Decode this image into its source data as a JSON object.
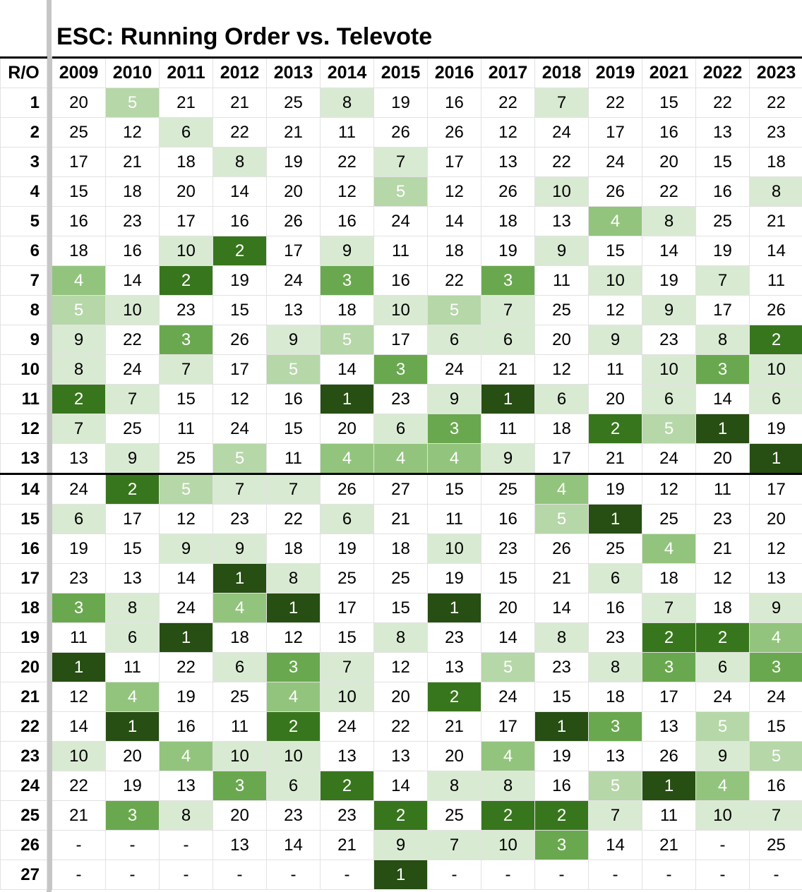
{
  "title": "ESC: Running Order vs. Televote",
  "header": {
    "ro_label": "R/O",
    "years": [
      "2009",
      "2010",
      "2011",
      "2012",
      "2013",
      "2014",
      "2015",
      "2016",
      "2017",
      "2018",
      "2019",
      "2021",
      "2022",
      "2023"
    ]
  },
  "colors": {
    "rank_1": "#274e13",
    "rank_2": "#38761d",
    "rank_3": "#6aa84f",
    "rank_4": "#93c47d",
    "rank_5": "#b6d7a8",
    "rank_6_to_10": "#d9ead3",
    "freeze_bar": "#c6c6c6"
  },
  "rows": [
    {
      "ro": "1",
      "values": [
        "20",
        "5",
        "21",
        "21",
        "25",
        "8",
        "19",
        "16",
        "22",
        "7",
        "22",
        "15",
        "22",
        "22"
      ]
    },
    {
      "ro": "2",
      "values": [
        "25",
        "12",
        "6",
        "22",
        "21",
        "11",
        "26",
        "26",
        "12",
        "24",
        "17",
        "16",
        "13",
        "23"
      ]
    },
    {
      "ro": "3",
      "values": [
        "17",
        "21",
        "18",
        "8",
        "19",
        "22",
        "7",
        "17",
        "13",
        "22",
        "24",
        "20",
        "15",
        "18"
      ]
    },
    {
      "ro": "4",
      "values": [
        "15",
        "18",
        "20",
        "14",
        "20",
        "12",
        "5",
        "12",
        "26",
        "10",
        "26",
        "22",
        "16",
        "8"
      ]
    },
    {
      "ro": "5",
      "values": [
        "16",
        "23",
        "17",
        "16",
        "26",
        "16",
        "24",
        "14",
        "18",
        "13",
        "4",
        "8",
        "25",
        "21"
      ]
    },
    {
      "ro": "6",
      "values": [
        "18",
        "16",
        "10",
        "2",
        "17",
        "9",
        "11",
        "18",
        "19",
        "9",
        "15",
        "14",
        "19",
        "14"
      ]
    },
    {
      "ro": "7",
      "values": [
        "4",
        "14",
        "2",
        "19",
        "24",
        "3",
        "16",
        "22",
        "3",
        "11",
        "10",
        "19",
        "7",
        "11"
      ]
    },
    {
      "ro": "8",
      "values": [
        "5",
        "10",
        "23",
        "15",
        "13",
        "18",
        "10",
        "5",
        "7",
        "25",
        "12",
        "9",
        "17",
        "26"
      ]
    },
    {
      "ro": "9",
      "values": [
        "9",
        "22",
        "3",
        "26",
        "9",
        "5",
        "17",
        "6",
        "6",
        "20",
        "9",
        "23",
        "8",
        "2"
      ]
    },
    {
      "ro": "10",
      "values": [
        "8",
        "24",
        "7",
        "17",
        "5",
        "14",
        "3",
        "24",
        "21",
        "12",
        "11",
        "10",
        "3",
        "10"
      ]
    },
    {
      "ro": "11",
      "values": [
        "2",
        "7",
        "15",
        "12",
        "16",
        "1",
        "23",
        "9",
        "1",
        "6",
        "20",
        "6",
        "14",
        "6"
      ]
    },
    {
      "ro": "12",
      "values": [
        "7",
        "25",
        "11",
        "24",
        "15",
        "20",
        "6",
        "3",
        "11",
        "18",
        "2",
        "5",
        "1",
        "19"
      ]
    },
    {
      "ro": "13",
      "values": [
        "13",
        "9",
        "25",
        "5",
        "11",
        "4",
        "4",
        "4",
        "9",
        "17",
        "21",
        "24",
        "20",
        "1"
      ]
    },
    {
      "ro": "14",
      "values": [
        "24",
        "2",
        "5",
        "7",
        "7",
        "26",
        "27",
        "15",
        "25",
        "4",
        "19",
        "12",
        "11",
        "17"
      ]
    },
    {
      "ro": "15",
      "values": [
        "6",
        "17",
        "12",
        "23",
        "22",
        "6",
        "21",
        "11",
        "16",
        "5",
        "1",
        "25",
        "23",
        "20"
      ]
    },
    {
      "ro": "16",
      "values": [
        "19",
        "15",
        "9",
        "9",
        "18",
        "19",
        "18",
        "10",
        "23",
        "26",
        "25",
        "4",
        "21",
        "12"
      ]
    },
    {
      "ro": "17",
      "values": [
        "23",
        "13",
        "14",
        "1",
        "8",
        "25",
        "25",
        "19",
        "15",
        "21",
        "6",
        "18",
        "12",
        "13"
      ]
    },
    {
      "ro": "18",
      "values": [
        "3",
        "8",
        "24",
        "4",
        "1",
        "17",
        "15",
        "1",
        "20",
        "14",
        "16",
        "7",
        "18",
        "9"
      ]
    },
    {
      "ro": "19",
      "values": [
        "11",
        "6",
        "1",
        "18",
        "12",
        "15",
        "8",
        "23",
        "14",
        "8",
        "23",
        "2",
        "2",
        "4"
      ]
    },
    {
      "ro": "20",
      "values": [
        "1",
        "11",
        "22",
        "6",
        "3",
        "7",
        "12",
        "13",
        "5",
        "23",
        "8",
        "3",
        "6",
        "3"
      ]
    },
    {
      "ro": "21",
      "values": [
        "12",
        "4",
        "19",
        "25",
        "4",
        "10",
        "20",
        "2",
        "24",
        "15",
        "18",
        "17",
        "24",
        "24"
      ]
    },
    {
      "ro": "22",
      "values": [
        "14",
        "1",
        "16",
        "11",
        "2",
        "24",
        "22",
        "21",
        "17",
        "1",
        "3",
        "13",
        "5",
        "15"
      ]
    },
    {
      "ro": "23",
      "values": [
        "10",
        "20",
        "4",
        "10",
        "10",
        "13",
        "13",
        "20",
        "4",
        "19",
        "13",
        "26",
        "9",
        "5"
      ]
    },
    {
      "ro": "24",
      "values": [
        "22",
        "19",
        "13",
        "3",
        "6",
        "2",
        "14",
        "8",
        "8",
        "16",
        "5",
        "1",
        "4",
        "16"
      ]
    },
    {
      "ro": "25",
      "values": [
        "21",
        "3",
        "8",
        "20",
        "23",
        "23",
        "2",
        "25",
        "2",
        "2",
        "7",
        "11",
        "10",
        "7"
      ]
    },
    {
      "ro": "26",
      "values": [
        "-",
        "-",
        "-",
        "13",
        "14",
        "21",
        "9",
        "7",
        "10",
        "3",
        "14",
        "21",
        "-",
        "25"
      ]
    },
    {
      "ro": "27",
      "values": [
        "-",
        "-",
        "-",
        "-",
        "-",
        "-",
        "1",
        "-",
        "-",
        "-",
        "-",
        "-",
        "-",
        "-"
      ]
    }
  ]
}
